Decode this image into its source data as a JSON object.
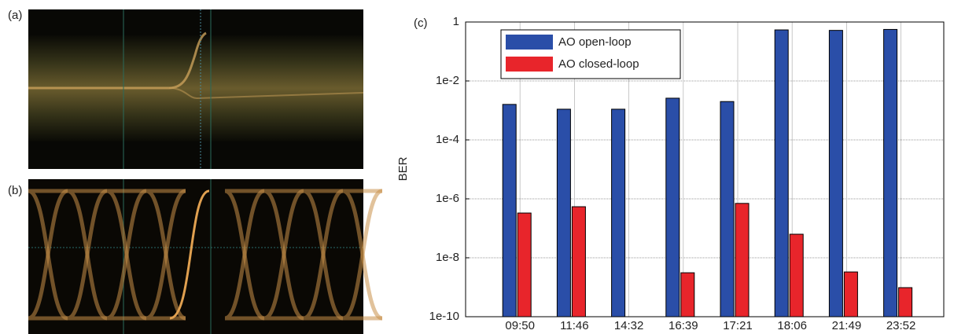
{
  "panel_labels": [
    "(a)",
    "(b)",
    "(c)"
  ],
  "chart_data": {
    "type": "bar",
    "y_label": "BER",
    "log_scale": true,
    "grid": true,
    "legend": "upper-left",
    "categories": [
      "09:50",
      "11:46",
      "14:32",
      "16:39",
      "17:21",
      "18:06",
      "21:49",
      "23:52"
    ],
    "series": [
      {
        "name": "AO open-loop",
        "color": "#2a4ea8",
        "values": [
          0.0016,
          0.0011,
          0.0011,
          0.0026,
          0.002,
          0.54,
          0.52,
          0.56
        ]
      },
      {
        "name": "AO closed-loop",
        "color": "#e8252b",
        "values": [
          3.3e-07,
          5.4e-07,
          null,
          3.1e-09,
          7e-07,
          6.3e-08,
          3.3e-09,
          9.7e-10
        ]
      }
    ],
    "ylim": [
      1e-10,
      1
    ],
    "yticks": [
      {
        "value": 1e-10,
        "label": "1e-10"
      },
      {
        "value": 1e-08,
        "label": "1e-8"
      },
      {
        "value": 1e-06,
        "label": "1e-6"
      },
      {
        "value": 0.0001,
        "label": "1e-4"
      },
      {
        "value": 0.01,
        "label": "1e-2"
      },
      1
    ]
  }
}
